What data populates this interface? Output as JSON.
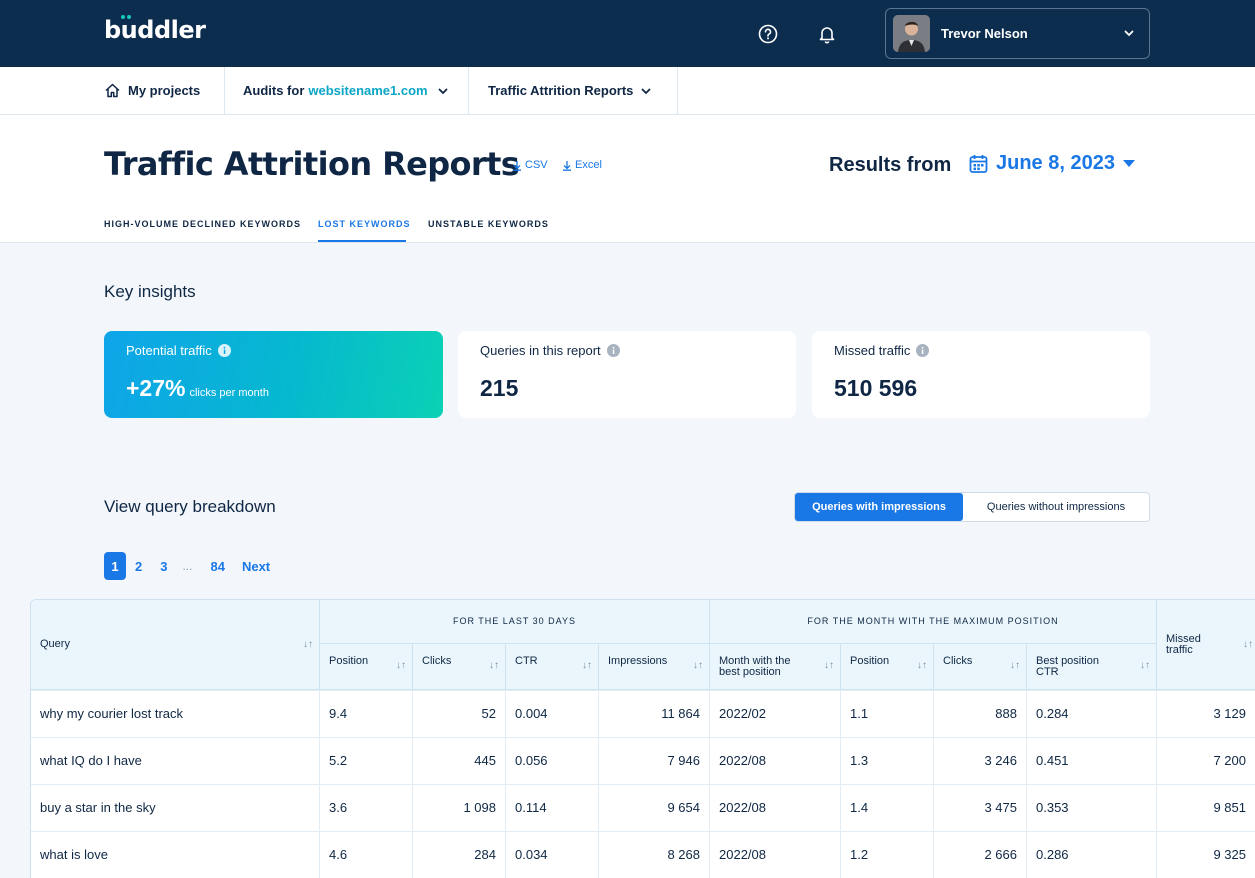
{
  "app": {
    "logo": "buddler"
  },
  "user": {
    "name": "Trevor Nelson"
  },
  "nav": {
    "projects": "My projects",
    "audits_prefix": "Audits for",
    "audits_site": "websitename1.com",
    "reports": "Traffic Attrition Reports"
  },
  "header": {
    "title": "Traffic Attrition Reports",
    "csv": "CSV",
    "excel": "Excel",
    "results_label": "Results from",
    "date": "June 8, 2023"
  },
  "tabs": [
    "HIGH-VOLUME DECLINED KEYWORDS",
    "LOST KEYWORDS",
    "UNSTABLE KEYWORDS"
  ],
  "insights": {
    "title": "Key insights",
    "potential_label": "Potential traffic",
    "potential_value": "+27%",
    "potential_unit": "clicks per month",
    "queries_label": "Queries in this report",
    "queries_value": "215",
    "missed_label": "Missed traffic",
    "missed_value": "510 596"
  },
  "breakdown": {
    "title": "View query breakdown",
    "toggle_on": "Queries with impressions",
    "toggle_off": "Queries without impressions"
  },
  "pager": {
    "p1": "1",
    "p2": "2",
    "p3": "3",
    "ellipsis": "...",
    "last": "84",
    "next": "Next"
  },
  "table": {
    "group1": "FOR THE LAST 30 DAYS",
    "group2": "FOR THE MONTH WITH THE MAXIMUM POSITION",
    "col_query": "Query",
    "col_missed": "Missed traffic",
    "col_position": "Position",
    "col_clicks": "Clicks",
    "col_ctr": "CTR",
    "col_impressions": "Impressions",
    "col_month": "Month with the best position",
    "col_best_position": "Position",
    "col_best_clicks": "Clicks",
    "col_best_ctr": "Best position CTR",
    "rows": [
      {
        "query": "why my courier lost track",
        "position": "9.4",
        "clicks": "52",
        "ctr": "0.004",
        "impressions": "11 864",
        "month": "2022/02",
        "best_position": "1.1",
        "best_clicks": "888",
        "best_ctr": "0.284",
        "missed": "3 129"
      },
      {
        "query": "what IQ do I have",
        "position": "5.2",
        "clicks": "445",
        "ctr": "0.056",
        "impressions": "7 946",
        "month": "2022/08",
        "best_position": "1.3",
        "best_clicks": "3 246",
        "best_ctr": "0.451",
        "missed": "7 200"
      },
      {
        "query": "buy a star in the sky",
        "position": "3.6",
        "clicks": "1 098",
        "ctr": "0.114",
        "impressions": "9 654",
        "month": "2022/08",
        "best_position": "1.4",
        "best_clicks": "3 475",
        "best_ctr": "0.353",
        "missed": "9 851"
      },
      {
        "query": "what is love",
        "position": "4.6",
        "clicks": "284",
        "ctr": "0.034",
        "impressions": "8 268",
        "month": "2022/08",
        "best_position": "1.2",
        "best_clicks": "2 666",
        "best_ctr": "0.286",
        "missed": "9 325"
      }
    ]
  }
}
